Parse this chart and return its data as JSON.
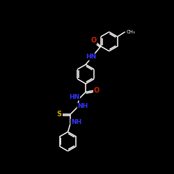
{
  "background": "#000000",
  "bond_color": "#ffffff",
  "N_color": "#3333ff",
  "O_color": "#cc2200",
  "S_color": "#ccaa00",
  "lw": 1.1,
  "figsize": [
    2.5,
    2.5
  ],
  "dpi": 100,
  "xlim": [
    -1.3,
    1.3
  ],
  "ylim": [
    -2.1,
    1.8
  ],
  "ring_r": 0.28
}
